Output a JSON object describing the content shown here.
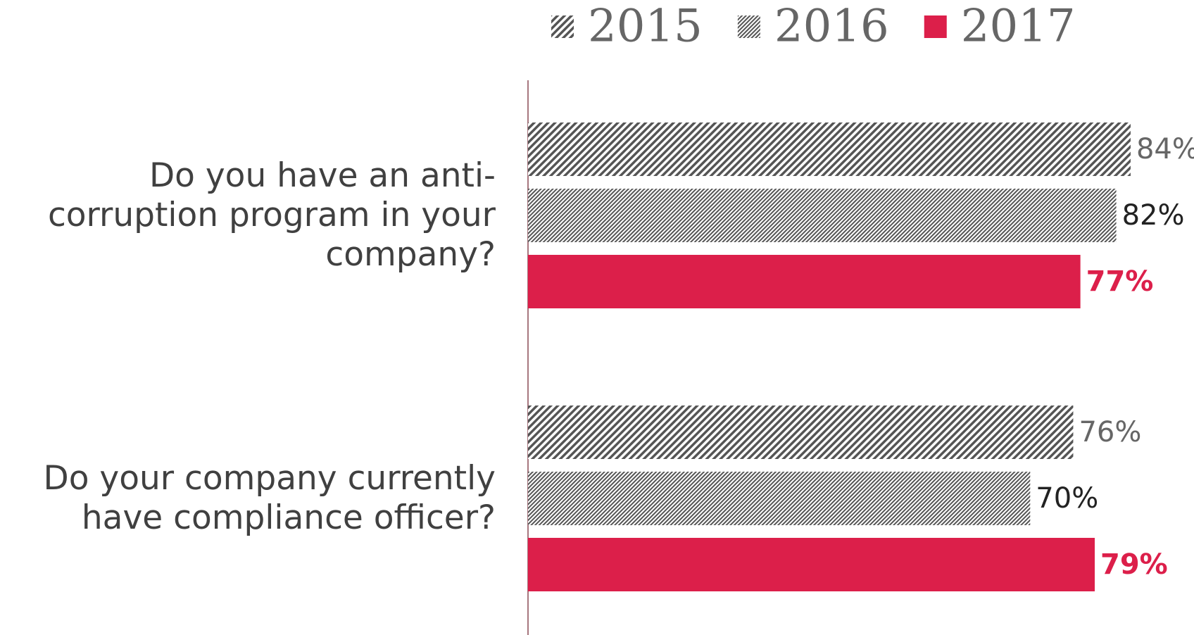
{
  "chart_data": {
    "type": "hbar",
    "categories": [
      "Do you have an anti-corruption program in your company?",
      "Do your company currently have compliance officer?"
    ],
    "series": [
      {
        "name": "2015",
        "color": "#555555",
        "hatch": "wide",
        "values": [
          84,
          76
        ],
        "value_labels": [
          "84%",
          "76%"
        ]
      },
      {
        "name": "2016",
        "color": "#555555",
        "hatch": "fine",
        "values": [
          82,
          70
        ],
        "value_labels": [
          "82%",
          "70%"
        ]
      },
      {
        "name": "2017",
        "color": "#dc1f4a",
        "values": [
          77,
          79
        ],
        "value_labels": [
          "77%",
          "79%"
        ]
      }
    ],
    "xlim": [
      0,
      100
    ]
  }
}
